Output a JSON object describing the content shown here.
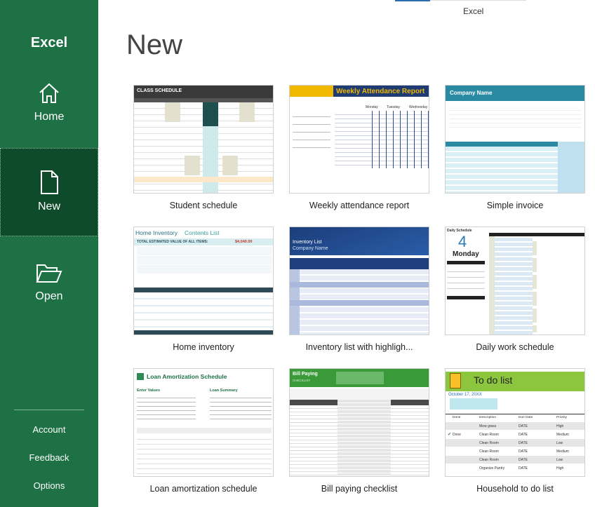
{
  "app": {
    "name": "Excel",
    "title": "Excel"
  },
  "sidebar": {
    "home": "Home",
    "new": "New",
    "open": "Open",
    "account": "Account",
    "feedback": "Feedback",
    "options": "Options"
  },
  "page": {
    "title": "New"
  },
  "templates": [
    {
      "caption": "Student schedule",
      "thumb_title": "CLASS SCHEDULE"
    },
    {
      "caption": "Weekly attendance report",
      "thumb_title": "Weekly Attendance Report",
      "days": [
        "Monday",
        "Tuesday",
        "Wednesday"
      ]
    },
    {
      "caption": "Simple invoice",
      "thumb_title": "Company Name"
    },
    {
      "caption": "Home inventory",
      "thumb_title": "Home Inventory",
      "thumb_tab": "Contents List",
      "thumb_total_label": "TOTAL ESTIMATED VALUE OF ALL ITEMS:",
      "thumb_total": "$4,040.00"
    },
    {
      "caption": "Inventory list with highligh...",
      "thumb_title": "Inventory List",
      "thumb_subtitle": "Company Name"
    },
    {
      "caption": "Daily work schedule",
      "thumb_title": "Daily Schedule",
      "day_num": "4",
      "day_name": "Monday"
    },
    {
      "caption": "Loan amortization schedule",
      "thumb_title": "Loan Amortization Schedule",
      "enter_values": "Enter Values",
      "loan_summary": "Loan Summary"
    },
    {
      "caption": "Bill paying checklist",
      "thumb_title": "Bill Paying",
      "thumb_subtitle": "CHECKLIST"
    },
    {
      "caption": "Household to do list",
      "thumb_title": "To do list",
      "date_line": "October 17, 20XX",
      "headers": [
        "Done",
        "Description",
        "Due Date",
        "Priority"
      ],
      "rows": [
        {
          "done": "",
          "desc": "Mow grass",
          "due": "DATE",
          "pri": "High"
        },
        {
          "done": "Done",
          "desc": "Clean Room",
          "due": "DATE",
          "pri": "Medium"
        },
        {
          "done": "",
          "desc": "Clean Room",
          "due": "DATE",
          "pri": "Low"
        },
        {
          "done": "",
          "desc": "Clean Room",
          "due": "DATE",
          "pri": "Medium"
        },
        {
          "done": "",
          "desc": "Clean Room",
          "due": "DATE",
          "pri": "Low"
        },
        {
          "done": "",
          "desc": "Organize Pantry",
          "due": "DATE",
          "pri": "High"
        }
      ]
    }
  ],
  "colors": {
    "sidebar": "#1e7145",
    "sidebar_selected": "#0e4b2b",
    "accent": "#2b6cb0"
  }
}
